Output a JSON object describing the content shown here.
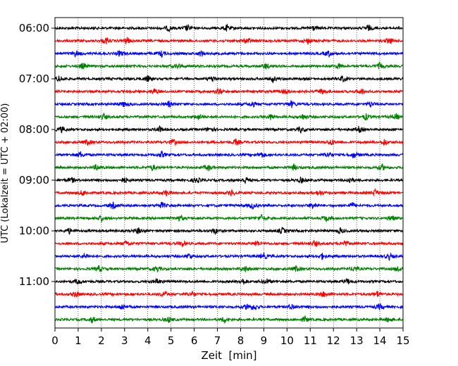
{
  "chart_data": {
    "type": "line",
    "title": "",
    "xlabel": "Zeit  [min]",
    "ylabel": "UTC (Lokalzeit = UTC + 02:00)",
    "xlim": [
      0,
      15
    ],
    "xticks": [
      0,
      1,
      2,
      3,
      4,
      5,
      6,
      7,
      8,
      9,
      10,
      11,
      12,
      13,
      14,
      15
    ],
    "grid": "vertical dotted lines at each minute",
    "trace_interval_minutes": 15,
    "trace_colors": [
      "#000000",
      "#ff0000",
      "#0000ff",
      "#008000"
    ],
    "series": [
      {
        "start": "06:00",
        "color": "#000000",
        "events_min": [
          4.9,
          5.7,
          7.4,
          11.1,
          13.5
        ]
      },
      {
        "start": "06:15",
        "color": "#ff0000",
        "events_min": [
          2.2,
          3.1,
          8.3,
          10.9,
          14.4
        ]
      },
      {
        "start": "06:30",
        "color": "#0000ff",
        "events_min": [
          0.9,
          2.8,
          4.6,
          6.3,
          11.8
        ]
      },
      {
        "start": "06:45",
        "color": "#008000",
        "events_min": [
          1.2,
          5.3,
          9.1,
          12.2,
          14.0
        ]
      },
      {
        "start": "07:00",
        "color": "#000000",
        "events_min": [
          0.2,
          4.0,
          6.8,
          9.4,
          12.4
        ]
      },
      {
        "start": "07:15",
        "color": "#ff0000",
        "events_min": [
          4.3,
          7.1,
          9.9,
          11.5,
          13.2
        ]
      },
      {
        "start": "07:30",
        "color": "#0000ff",
        "events_min": [
          3.0,
          4.9,
          8.5,
          10.2,
          13.6
        ]
      },
      {
        "start": "07:45",
        "color": "#008000",
        "events_min": [
          2.1,
          6.2,
          9.3,
          10.7,
          13.4,
          14.7
        ]
      },
      {
        "start": "08:00",
        "color": "#000000",
        "events_min": [
          0.3,
          4.5,
          6.7,
          10.6,
          13.1
        ]
      },
      {
        "start": "08:15",
        "color": "#ff0000",
        "events_min": [
          1.4,
          5.1,
          7.8,
          11.9,
          14.2
        ]
      },
      {
        "start": "08:30",
        "color": "#0000ff",
        "events_min": [
          1.1,
          4.6,
          8.9,
          11.8,
          12.9
        ]
      },
      {
        "start": "08:45",
        "color": "#008000",
        "events_min": [
          1.8,
          4.2,
          6.6,
          10.3,
          14.1
        ]
      },
      {
        "start": "09:00",
        "color": "#000000",
        "events_min": [
          0.7,
          3.0,
          6.1,
          8.2,
          10.6,
          12.7
        ]
      },
      {
        "start": "09:15",
        "color": "#ff0000",
        "events_min": [
          1.2,
          4.8,
          7.6,
          11.4,
          13.8
        ]
      },
      {
        "start": "09:30",
        "color": "#0000ff",
        "events_min": [
          2.5,
          4.6,
          8.5,
          11.1,
          12.8
        ]
      },
      {
        "start": "09:45",
        "color": "#008000",
        "events_min": [
          2.0,
          5.4,
          8.9,
          11.7,
          14.5
        ]
      },
      {
        "start": "10:00",
        "color": "#000000",
        "events_min": [
          0.6,
          3.6,
          6.9,
          9.8,
          12.3
        ]
      },
      {
        "start": "10:15",
        "color": "#ff0000",
        "events_min": [
          3.1,
          5.5,
          8.7,
          11.2,
          12.5
        ]
      },
      {
        "start": "10:30",
        "color": "#0000ff",
        "events_min": [
          1.3,
          5.8,
          9.0,
          11.5,
          14.4
        ]
      },
      {
        "start": "10:45",
        "color": "#008000",
        "events_min": [
          1.9,
          4.4,
          8.2,
          10.4,
          12.9,
          14.8
        ]
      },
      {
        "start": "11:00",
        "color": "#000000",
        "events_min": [
          1.0,
          4.4,
          8.1,
          9.1,
          12.6
        ]
      },
      {
        "start": "11:15",
        "color": "#ff0000",
        "events_min": [
          0.9,
          4.7,
          5.9,
          11.6,
          13.9
        ]
      },
      {
        "start": "11:30",
        "color": "#0000ff",
        "events_min": [
          2.9,
          8.3,
          8.6,
          10.2,
          14.0
        ]
      },
      {
        "start": "11:45",
        "color": "#008000",
        "events_min": [
          1.6,
          4.9,
          7.3,
          10.8,
          14.4
        ]
      }
    ],
    "ytick_labels": [
      "06:00",
      "07:00",
      "08:00",
      "09:00",
      "10:00",
      "11:00"
    ]
  }
}
